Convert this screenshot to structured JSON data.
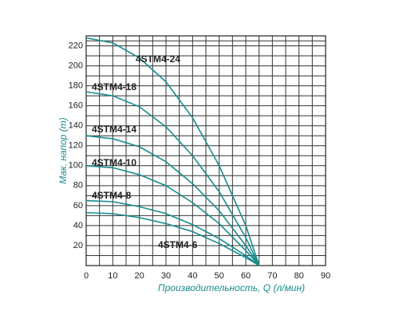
{
  "chart_data": {
    "type": "line",
    "y_label": "Мак. напор (m)",
    "x_label": "Производительность, Q (л/мин)",
    "x": [
      0,
      10,
      20,
      30,
      40,
      50,
      60,
      65
    ],
    "series": [
      {
        "name": "4STM4-24",
        "color": "#1a8c8c",
        "values": [
          228,
          223,
          208,
          184,
          148,
          100,
          40,
          0
        ]
      },
      {
        "name": "4STM4-18",
        "color": "#1a8c8c",
        "values": [
          174,
          170,
          159,
          139,
          110,
          74,
          28,
          0
        ]
      },
      {
        "name": "4STM4-14",
        "color": "#1a8c8c",
        "values": [
          130,
          127,
          119,
          104,
          82,
          55,
          20,
          0
        ]
      },
      {
        "name": "4STM4-10",
        "color": "#1a8c8c",
        "values": [
          100,
          98,
          91,
          80,
          63,
          42,
          15,
          0
        ]
      },
      {
        "name": "4STM4-8",
        "color": "#1a8c8c",
        "values": [
          65,
          64,
          59,
          52,
          41,
          27,
          10,
          0
        ]
      },
      {
        "name": "4STM4-6",
        "color": "#1a8c8c",
        "values": [
          53,
          52,
          48,
          42,
          34,
          22,
          8,
          0
        ]
      }
    ],
    "xlim": [
      0,
      90
    ],
    "ylim": [
      0,
      230
    ],
    "xticks": [
      0,
      10,
      20,
      30,
      40,
      50,
      60,
      70,
      80,
      90
    ],
    "yticks": [
      20,
      40,
      60,
      80,
      100,
      120,
      140,
      160,
      180,
      200,
      220
    ],
    "grid": true
  }
}
